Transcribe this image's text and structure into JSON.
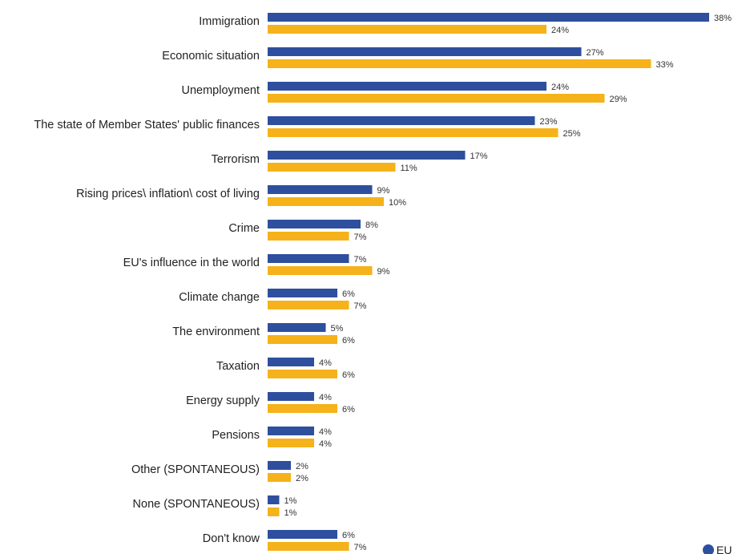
{
  "chart_data": {
    "type": "bar",
    "orientation": "horizontal",
    "categories": [
      "Immigration",
      "Economic situation",
      "Unemployment",
      "The state of Member States' public finances",
      "Terrorism",
      "Rising prices\\ inflation\\ cost of living",
      "Crime",
      "EU's influence in the world",
      "Climate change",
      "The environment",
      "Taxation",
      "Energy supply",
      "Pensions",
      "Other (SPONTANEOUS)",
      "None (SPONTANEOUS)",
      "Don't know"
    ],
    "series": [
      {
        "values": [
          38,
          27,
          24,
          23,
          17,
          9,
          8,
          7,
          6,
          5,
          4,
          4,
          4,
          2,
          1,
          6
        ],
        "labels": [
          "38%",
          "27%",
          "24%",
          "23%",
          "17%",
          "9%",
          "8%",
          "7%",
          "6%",
          "5%",
          "4%",
          "4%",
          "4%",
          "2%",
          "1%",
          "6%"
        ],
        "color": "#2e4f9e"
      },
      {
        "values": [
          24,
          33,
          29,
          25,
          11,
          10,
          7,
          9,
          7,
          6,
          6,
          6,
          4,
          2,
          1,
          7
        ],
        "labels": [
          "24%",
          "33%",
          "29%",
          "25%",
          "11%",
          "10%",
          "7%",
          "9%",
          "7%",
          "6%",
          "6%",
          "6%",
          "4%",
          "2%",
          "1%",
          "7%"
        ],
        "color": "#f5b21a"
      }
    ],
    "unit": "%",
    "xlim": [
      0,
      40
    ],
    "grid": false,
    "legend": {
      "placement": "bottom-right",
      "visible_text": "EU",
      "marker_color": "#2e4f9e"
    }
  }
}
